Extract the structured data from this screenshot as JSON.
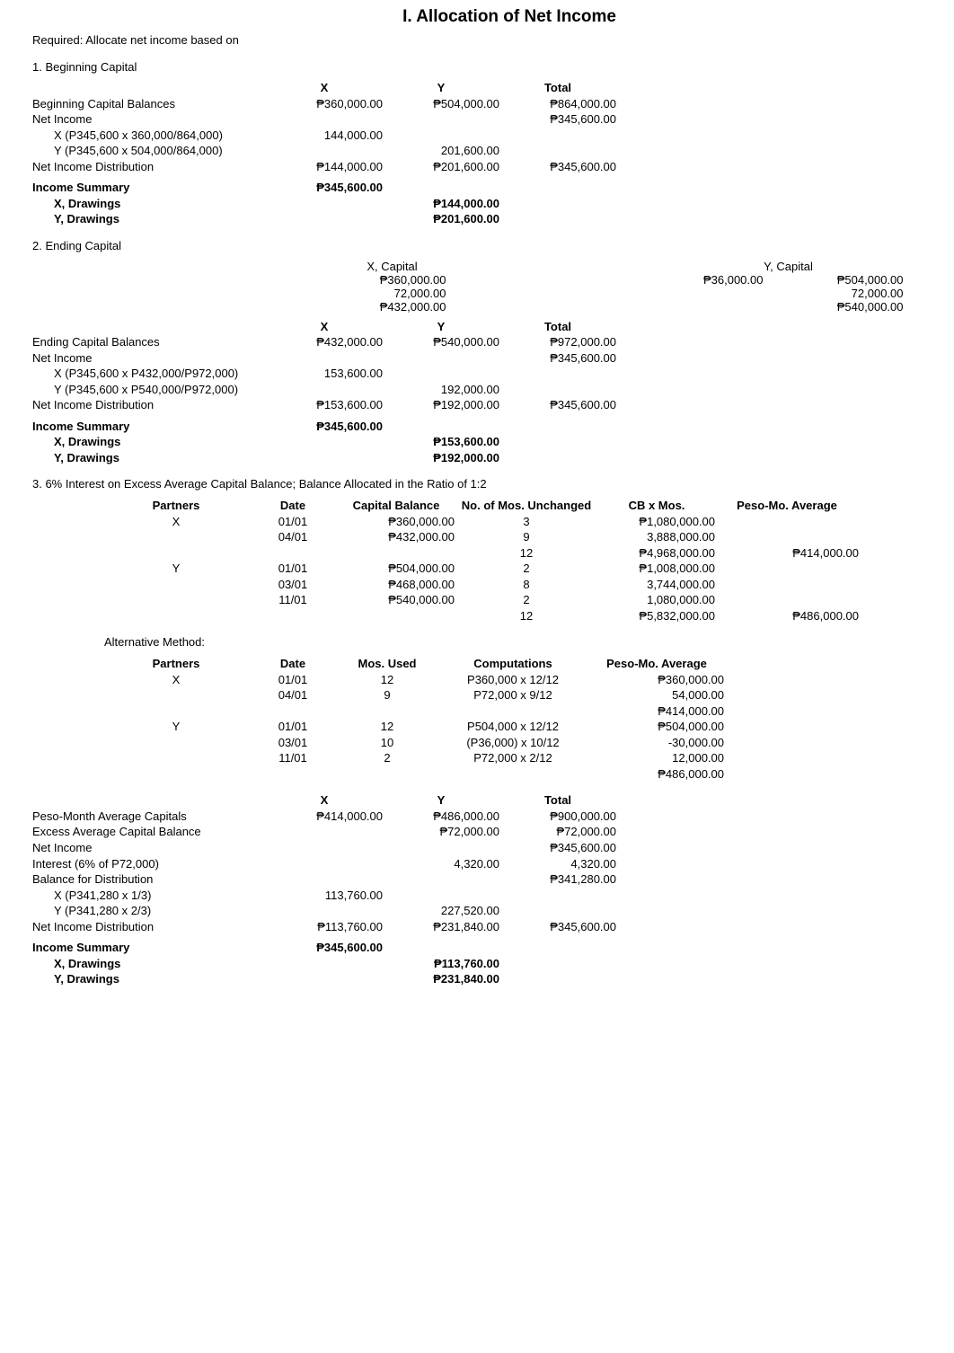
{
  "doc": {
    "title": "I. Allocation of Net Income",
    "required": "Required: Allocate net income based on"
  },
  "s1": {
    "heading": "1. Beginning Capital",
    "hdr": {
      "x": "X",
      "y": "Y",
      "t": "Total"
    },
    "rows": {
      "begcap": {
        "label": "Beginning Capital Balances",
        "x": "₱360,000.00",
        "y": "₱504,000.00",
        "t": "₱864,000.00"
      },
      "netinc": {
        "label": "Net Income",
        "t": "₱345,600.00"
      },
      "xalloc": {
        "label": "X (P345,600 x 360,000/864,000)",
        "x": "144,000.00"
      },
      "yalloc": {
        "label": "Y (P345,600 x 504,000/864,000)",
        "y": "201,600.00"
      },
      "dist": {
        "label": "Net Income Distribution",
        "x": "₱144,000.00",
        "y": "₱201,600.00",
        "t": "₱345,600.00"
      }
    },
    "summary": {
      "incsum": "Income Summary",
      "incsum_x": "₱345,600.00",
      "xdraw": "X, Drawings",
      "xdraw_y": "₱144,000.00",
      "ydraw": "Y, Drawings",
      "ydraw_y": "₱201,600.00"
    }
  },
  "s2": {
    "heading": "2. Ending Capital",
    "caps": {
      "x_title": "X, Capital",
      "x_l1": "₱360,000.00",
      "x_l2": "72,000.00",
      "x_l3": "₱432,000.00",
      "y_title": "Y, Capital",
      "y_left": "₱36,000.00",
      "y_r1": "₱504,000.00",
      "y_r2": "72,000.00",
      "y_r3": "₱540,000.00"
    },
    "hdr": {
      "x": "X",
      "y": "Y",
      "t": "Total"
    },
    "rows": {
      "endcap": {
        "label": "Ending Capital Balances",
        "x": "₱432,000.00",
        "y": "₱540,000.00",
        "t": "₱972,000.00"
      },
      "netinc": {
        "label": "Net Income",
        "t": "₱345,600.00"
      },
      "xalloc": {
        "label": "X (P345,600 x P432,000/P972,000)",
        "x": "153,600.00"
      },
      "yalloc": {
        "label": "Y (P345,600 x P540,000/P972,000)",
        "y": "192,000.00"
      },
      "dist": {
        "label": "Net Income Distribution",
        "x": "₱153,600.00",
        "y": "₱192,000.00",
        "t": "₱345,600.00"
      }
    },
    "summary": {
      "incsum": "Income Summary",
      "incsum_x": "₱345,600.00",
      "xdraw": "X, Drawings",
      "xdraw_y": "₱153,600.00",
      "ydraw": "Y, Drawings",
      "ydraw_y": "₱192,000.00"
    }
  },
  "s3": {
    "heading": "3. 6% Interest on Excess Average Capital Balance; Balance Allocated in the Ratio of 1:2",
    "tblA": {
      "hdr": {
        "partners": "Partners",
        "date": "Date",
        "cb": "Capital Balance",
        "mos": "No. of Mos. Unchanged",
        "cbm": "CB x Mos.",
        "avg": "Peso-Mo. Average"
      },
      "rows": [
        {
          "p": "X",
          "d": "01/01",
          "cb": "₱360,000.00",
          "m": "3",
          "cbm": "₱1,080,000.00",
          "avg": ""
        },
        {
          "p": "",
          "d": "04/01",
          "cb": "₱432,000.00",
          "m": "9",
          "cbm": "3,888,000.00",
          "avg": ""
        },
        {
          "p": "",
          "d": "",
          "cb": "",
          "m": "12",
          "cbm": "₱4,968,000.00",
          "avg": "₱414,000.00"
        },
        {
          "p": "Y",
          "d": "01/01",
          "cb": "₱504,000.00",
          "m": "2",
          "cbm": "₱1,008,000.00",
          "avg": ""
        },
        {
          "p": "",
          "d": "03/01",
          "cb": "₱468,000.00",
          "m": "8",
          "cbm": "3,744,000.00",
          "avg": ""
        },
        {
          "p": "",
          "d": "11/01",
          "cb": "₱540,000.00",
          "m": "2",
          "cbm": "1,080,000.00",
          "avg": ""
        },
        {
          "p": "",
          "d": "",
          "cb": "",
          "m": "12",
          "cbm": "₱5,832,000.00",
          "avg": "₱486,000.00"
        }
      ]
    },
    "altHeading": "Alternative Method:",
    "tblB": {
      "hdr": {
        "partners": "Partners",
        "date": "Date",
        "mos": "Mos. Used",
        "comp": "Computations",
        "avg": "Peso-Mo. Average"
      },
      "rows": [
        {
          "p": "X",
          "d": "01/01",
          "m": "12",
          "c": "P360,000 x 12/12",
          "a": "₱360,000.00"
        },
        {
          "p": "",
          "d": "04/01",
          "m": "9",
          "c": "P72,000 x 9/12",
          "a": "54,000.00"
        },
        {
          "p": "",
          "d": "",
          "m": "",
          "c": "",
          "a": "₱414,000.00"
        },
        {
          "p": "Y",
          "d": "01/01",
          "m": "12",
          "c": "P504,000 x 12/12",
          "a": "₱504,000.00"
        },
        {
          "p": "",
          "d": "03/01",
          "m": "10",
          "c": "(P36,000) x 10/12",
          "a": "-30,000.00"
        },
        {
          "p": "",
          "d": "11/01",
          "m": "2",
          "c": "P72,000 x 2/12",
          "a": "12,000.00"
        },
        {
          "p": "",
          "d": "",
          "m": "",
          "c": "",
          "a": "₱486,000.00"
        }
      ]
    },
    "ledger": {
      "hdr": {
        "x": "X",
        "y": "Y",
        "t": "Total"
      },
      "rows": {
        "pmac": {
          "label": "Peso-Month Average Capitals",
          "x": "₱414,000.00",
          "y": "₱486,000.00",
          "t": "₱900,000.00"
        },
        "eacb": {
          "label": "Excess Average Capital Balance",
          "y": "₱72,000.00",
          "t": "₱72,000.00"
        },
        "netinc": {
          "label": "Net Income",
          "t": "₱345,600.00"
        },
        "interest": {
          "label": "Interest (6% of P72,000)",
          "y": "4,320.00",
          "t": "4,320.00"
        },
        "baldist": {
          "label": "Balance for Distribution",
          "t": "₱341,280.00"
        },
        "xalloc": {
          "label": "X (P341,280 x 1/3)",
          "x": "113,760.00"
        },
        "yalloc": {
          "label": "Y (P341,280 x 2/3)",
          "y": "227,520.00"
        },
        "dist": {
          "label": "Net Income Distribution",
          "x": "₱113,760.00",
          "y": "₱231,840.00",
          "t": "₱345,600.00"
        }
      },
      "summary": {
        "incsum": "Income Summary",
        "incsum_x": "₱345,600.00",
        "xdraw": "X, Drawings",
        "xdraw_y": "₱113,760.00",
        "ydraw": "Y, Drawings",
        "ydraw_y": "₱231,840.00"
      }
    }
  }
}
